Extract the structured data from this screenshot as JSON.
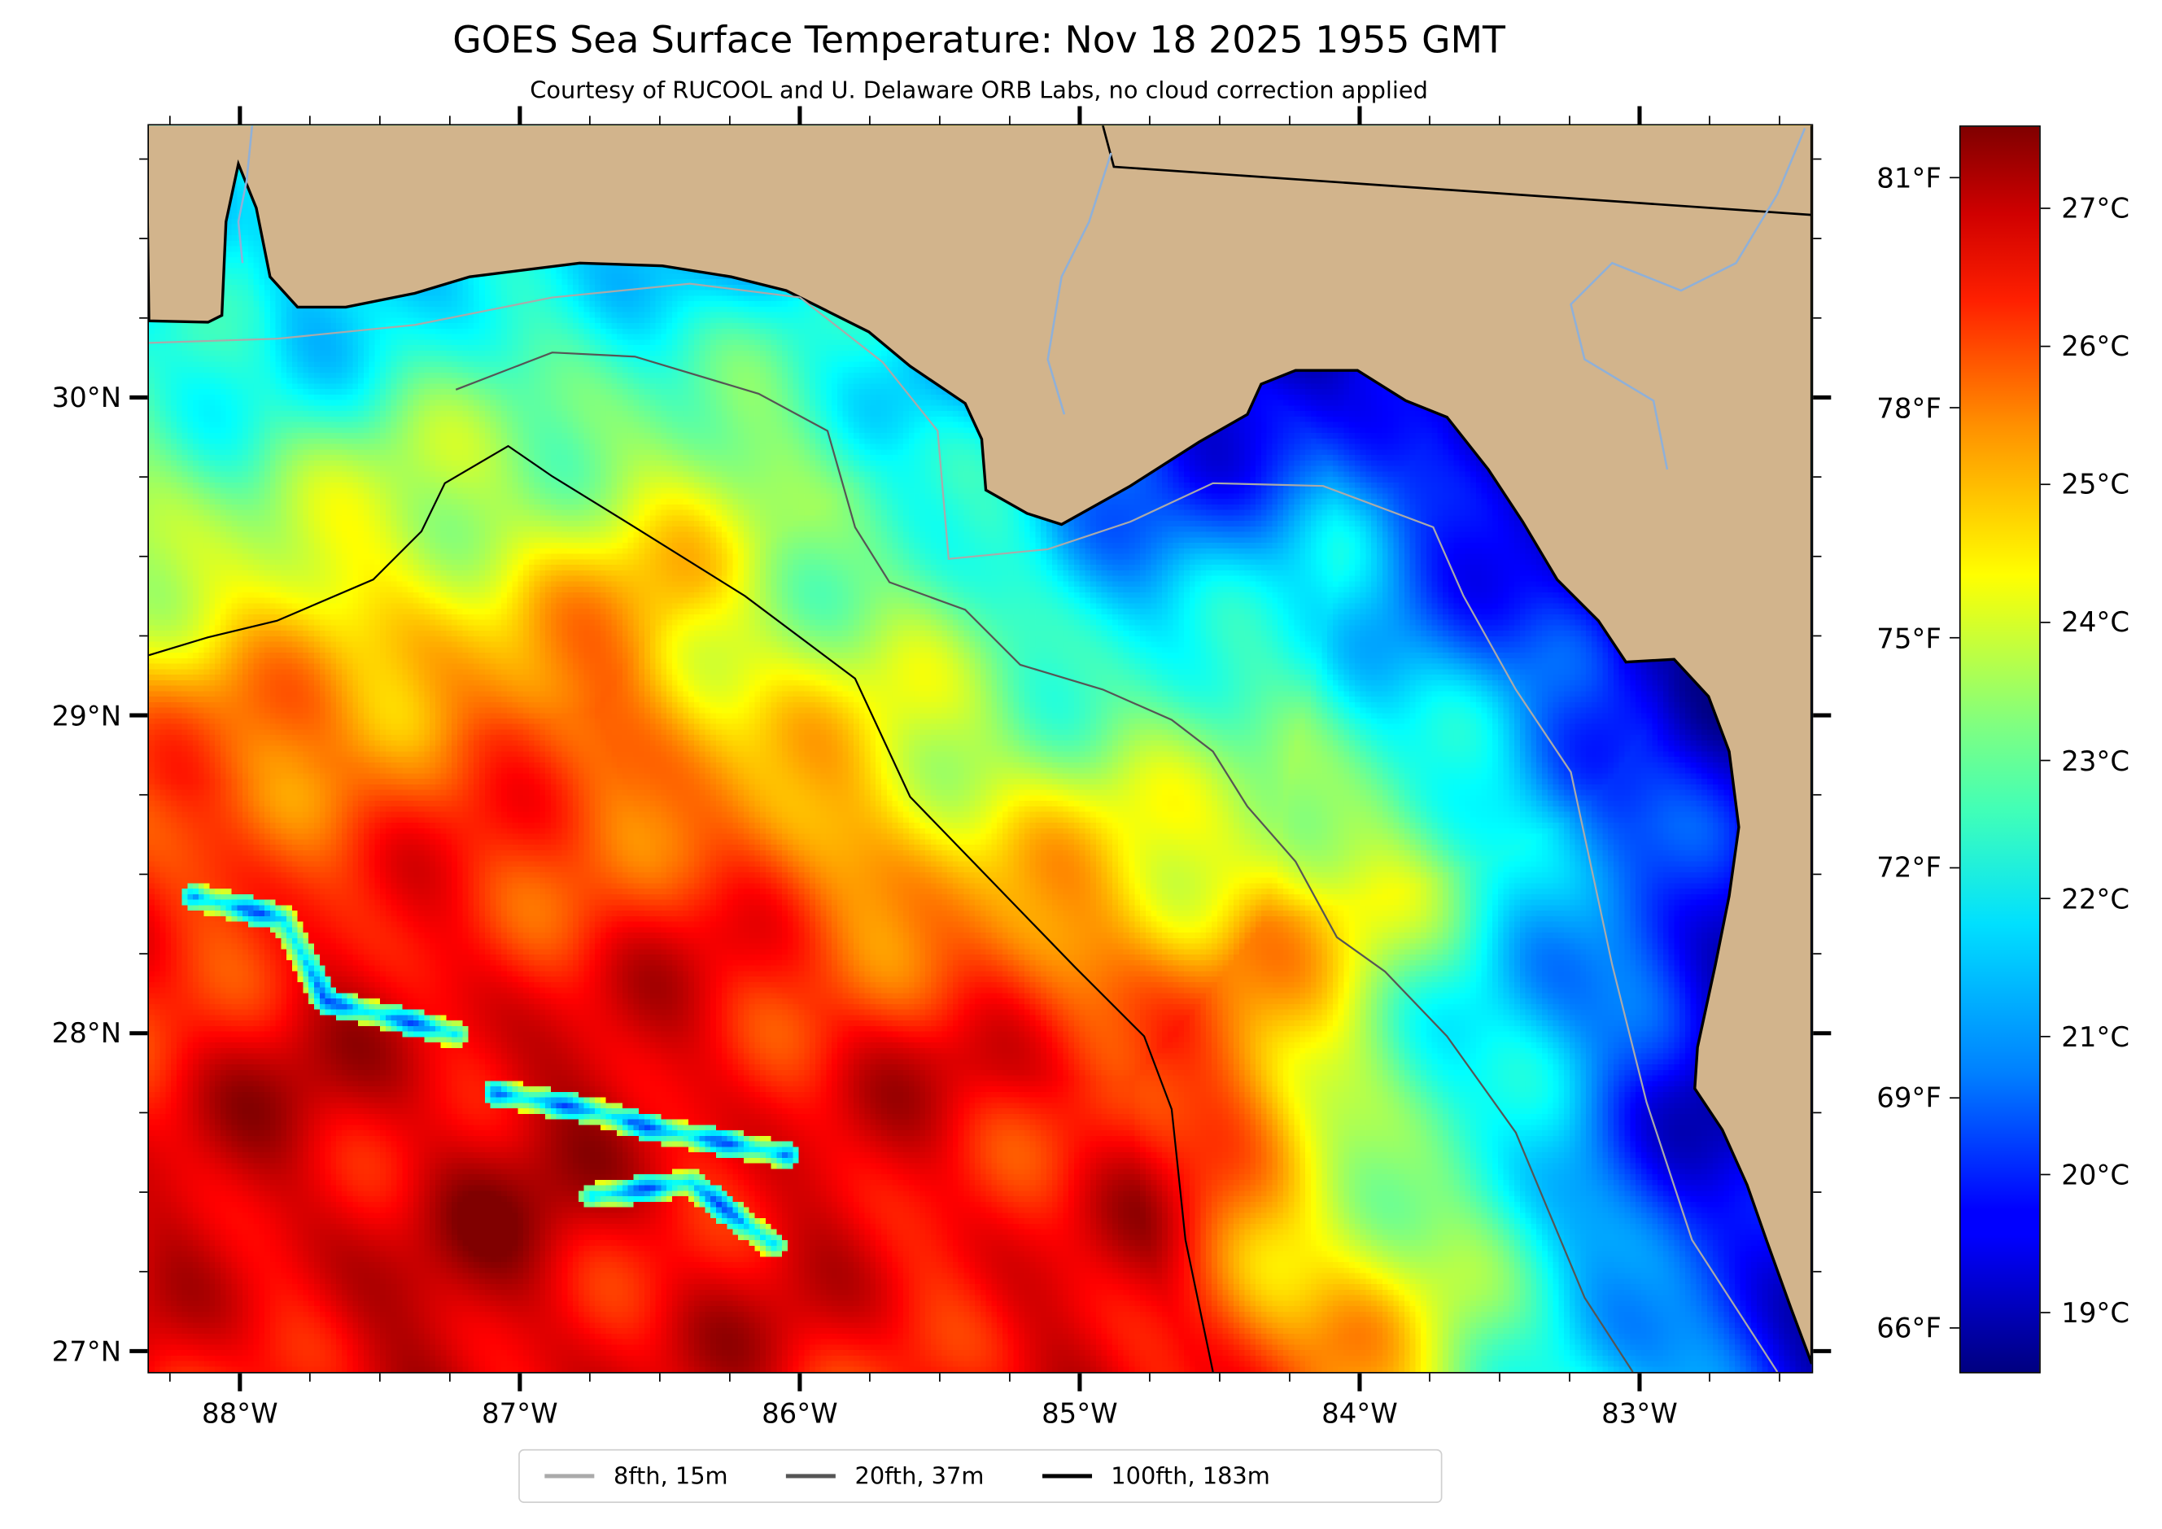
{
  "chart_data": {
    "type": "heatmap",
    "title": "GOES Sea Surface Temperature: Nov 18 2025 1955 GMT",
    "subtitle": "Courtesy of RUCOOL and U. Delaware ORB Labs, no cloud correction applied",
    "xlabel": "",
    "ylabel": "",
    "lon_range": [
      -88.33,
      -82.38
    ],
    "lat_range": [
      26.93,
      30.86
    ],
    "x_ticks": [
      {
        "value": -88,
        "label": "88°W"
      },
      {
        "value": -87,
        "label": "87°W"
      },
      {
        "value": -86,
        "label": "86°W"
      },
      {
        "value": -85,
        "label": "85°W"
      },
      {
        "value": -84,
        "label": "84°W"
      },
      {
        "value": -83,
        "label": "83°W"
      }
    ],
    "y_ticks": [
      {
        "value": 30,
        "label": "30°N"
      },
      {
        "value": 29,
        "label": "29°N"
      },
      {
        "value": 28,
        "label": "28°N"
      },
      {
        "value": 27,
        "label": "27°N"
      }
    ],
    "colorbar": {
      "colormap": "jet",
      "vmin_c": 18.56,
      "vmax_c": 27.6,
      "ticks_c": [
        {
          "value": 27,
          "label": "27°C"
        },
        {
          "value": 26,
          "label": "26°C"
        },
        {
          "value": 25,
          "label": "25°C"
        },
        {
          "value": 24,
          "label": "24°C"
        },
        {
          "value": 23,
          "label": "23°C"
        },
        {
          "value": 22,
          "label": "22°C"
        },
        {
          "value": 21,
          "label": "21°C"
        },
        {
          "value": 20,
          "label": "20°C"
        },
        {
          "value": 19,
          "label": "19°C"
        }
      ],
      "ticks_f": [
        {
          "value": 81,
          "label": "81°F"
        },
        {
          "value": 78,
          "label": "78°F"
        },
        {
          "value": 75,
          "label": "75°F"
        },
        {
          "value": 72,
          "label": "72°F"
        },
        {
          "value": 69,
          "label": "69°F"
        },
        {
          "value": 66,
          "label": "66°F"
        }
      ]
    },
    "legend": {
      "placement": "bottom-center",
      "entries": [
        {
          "label": "8fth, 15m",
          "color": "#aaaaaa"
        },
        {
          "label": "20fth, 37m",
          "color": "#555555"
        },
        {
          "label": "100fth, 183m",
          "color": "#000000"
        }
      ]
    },
    "colors": {
      "land": "#d2b48c",
      "coast": "#000000",
      "rivers": "#8fb0d8",
      "no_data": "#ffffff"
    },
    "regions": {
      "big_bend_nearshore_c": 19.5,
      "western_nearshore_c": 22.0,
      "offshore_max_c": 27.0
    }
  }
}
